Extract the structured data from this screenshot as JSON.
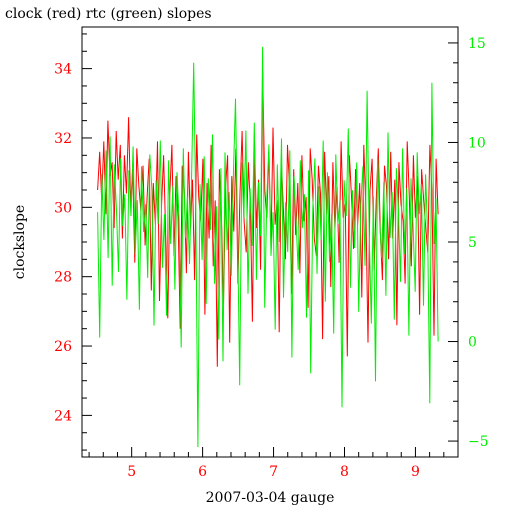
{
  "chart_data": {
    "type": "line",
    "title": "clock (red) rtc (green) slopes",
    "xlabel": "2007-03-04 gauge",
    "ylabel": "clockslope",
    "xlim": [
      4.3,
      9.6
    ],
    "ylim_left": [
      22.8,
      35.2
    ],
    "ylim_right": [
      -5.8,
      15.8
    ],
    "x_ticks": [
      {
        "value": 5,
        "label": "5"
      },
      {
        "value": 6,
        "label": "6"
      },
      {
        "value": 7,
        "label": "7"
      },
      {
        "value": 8,
        "label": "8"
      },
      {
        "value": 9,
        "label": "9"
      }
    ],
    "y_left_ticks": [
      {
        "value": 24,
        "label": "24"
      },
      {
        "value": 26,
        "label": "26"
      },
      {
        "value": 28,
        "label": "28"
      },
      {
        "value": 30,
        "label": "30"
      },
      {
        "value": 32,
        "label": "32"
      },
      {
        "value": 34,
        "label": "34"
      }
    ],
    "y_right_ticks": [
      {
        "value": -5,
        "label": "−5"
      },
      {
        "value": 0,
        "label": "0"
      },
      {
        "value": 5,
        "label": "5"
      },
      {
        "value": 10,
        "label": "10"
      },
      {
        "value": 15,
        "label": "15"
      }
    ],
    "series": [
      {
        "axis": "left",
        "color": "#ff0000",
        "x_start": 4.52,
        "x_end": 9.32,
        "values": [
          30.5,
          31.6,
          30.2,
          31.9,
          29.8,
          32.5,
          30.9,
          31.3,
          29.4,
          32.2,
          30.8,
          31.8,
          29.1,
          31.5,
          30.4,
          32.6,
          30.1,
          31.1,
          28.4,
          31.7,
          30.6,
          29.9,
          31.2,
          28.9,
          30.3,
          31.4,
          27.6,
          30.7,
          29.5,
          31.9,
          27.3,
          30.1,
          31.5,
          29.2,
          26.8,
          30.4,
          31.8,
          28.6,
          30.9,
          29.7,
          26.5,
          31.2,
          30.5,
          28.1,
          31.6,
          29.4,
          30.8,
          27.9,
          32.1,
          30.3,
          29.6,
          31.4,
          26.9,
          30.7,
          29.1,
          31.8,
          28.3,
          30.2,
          25.4,
          31.1,
          29.8,
          27.2,
          30.6,
          31.5,
          26.1,
          30.9,
          29.3,
          31.7,
          27.8,
          30.4,
          32.2,
          29.6,
          28.7,
          31.3,
          30.1,
          26.7,
          31.9,
          29.4,
          30.8,
          28.2,
          33.9,
          30.5,
          29.7,
          31.6,
          28.9,
          32.3,
          29.5,
          30.2,
          26.4,
          31.4,
          29.9,
          28.5,
          31.8,
          30.6,
          27.5,
          31.1,
          29.2,
          30.7,
          28.1,
          31.5,
          29.6,
          30.3,
          27.1,
          31.7,
          30.8,
          29.1,
          28.6,
          31.2,
          30.4,
          26.2,
          31.6,
          29.8,
          30.9,
          27.7,
          31.3,
          29.4,
          30.6,
          28.4,
          31.9,
          29.7,
          30.1,
          25.7,
          31.5,
          30.3,
          28.8,
          31.1,
          29.5,
          30.7,
          27.4,
          31.8,
          29.9,
          26.1,
          30.5,
          31.4,
          28.2,
          30.2,
          31.7,
          29.3,
          27.9,
          31.2,
          30.6,
          28.5,
          31.6,
          29.1,
          30.8,
          26.6,
          31.3,
          30.1,
          29.6,
          27.8,
          31.9,
          30.4,
          28.3,
          31.5,
          29.7,
          30.9,
          26.9,
          31.1,
          30.2,
          29.4,
          28.7,
          31.8,
          30.5,
          26.3,
          31.4,
          29.8
        ]
      },
      {
        "axis": "right",
        "color": "#00ee00",
        "x_start": 4.52,
        "x_end": 9.32,
        "values": [
          6.5,
          0.2,
          8.4,
          5.1,
          9.6,
          4.2,
          10.3,
          2.8,
          8.9,
          6.7,
          3.5,
          9.2,
          5.8,
          7.4,
          2.1,
          8.6,
          6.3,
          9.8,
          4.4,
          7.1,
          1.6,
          8.8,
          5.5,
          6.9,
          3.2,
          9.4,
          7.6,
          0.8,
          8.1,
          5.9,
          10.1,
          3.7,
          6.4,
          1.3,
          9.1,
          4.9,
          7.8,
          2.6,
          8.5,
          6.1,
          -0.3,
          9.7,
          5.2,
          7.3,
          3.9,
          8.3,
          14.0,
          6.6,
          -5.3,
          7.9,
          4.1,
          9.3,
          1.9,
          8.2,
          5.6,
          10.4,
          2.9,
          6.8,
          0.1,
          8.7,
          -1.0,
          9.5,
          4.6,
          7.5,
          3.3,
          8.4,
          12.2,
          5.4,
          -2.2,
          9.0,
          6.2,
          10.6,
          2.4,
          7.7,
          4.8,
          11.0,
          3.1,
          8.0,
          5.3,
          14.8,
          1.7,
          7.2,
          9.9,
          4.3,
          6.5,
          0.6,
          8.9,
          5.0,
          10.2,
          2.2,
          7.0,
          4.5,
          9.6,
          -0.8,
          8.3,
          6.0,
          3.6,
          9.1,
          5.7,
          7.4,
          1.2,
          8.6,
          -1.6,
          6.7,
          9.2,
          3.4,
          7.8,
          5.1,
          10.1,
          2.0,
          8.5,
          4.0,
          6.4,
          0.4,
          9.4,
          5.9,
          7.1,
          -3.3,
          8.1,
          6.3,
          10.7,
          2.7,
          7.6,
          4.7,
          9.0,
          1.5,
          6.9,
          8.8,
          3.8,
          12.6,
          5.5,
          0.9,
          7.3,
          -2.0,
          9.3,
          6.1,
          4.2,
          8.0,
          2.3,
          10.5,
          5.2,
          7.5,
          1.1,
          8.7,
          6.6,
          3.0,
          9.7,
          4.4,
          7.7,
          0.3,
          8.2,
          5.8,
          2.5,
          9.5,
          6.4,
          7.9,
          1.8,
          8.4,
          5.3,
          -3.1,
          13.0,
          4.9,
          7.2,
          0.0
        ]
      }
    ]
  }
}
